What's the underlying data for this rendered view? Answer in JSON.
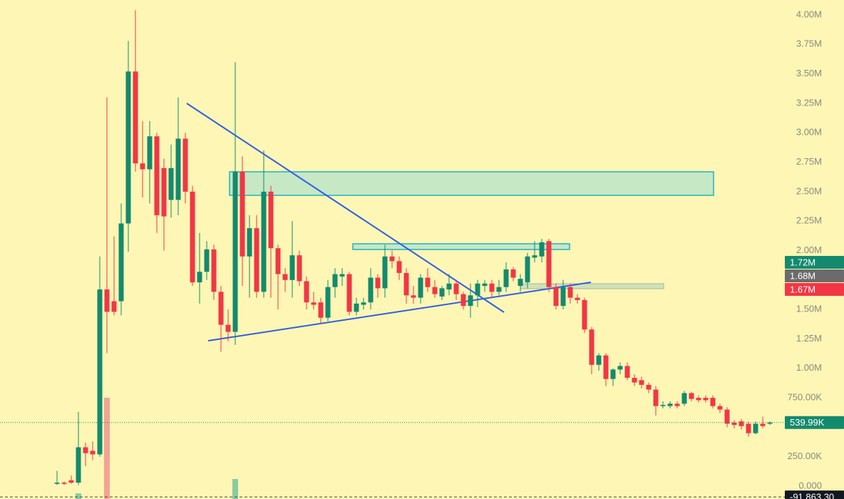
{
  "chart_data": {
    "type": "candlestick",
    "ylim": [
      -108900,
      4127000
    ],
    "yticks": [
      {
        "value": 4000000,
        "label": "4.00M"
      },
      {
        "value": 3750000,
        "label": "3.75M"
      },
      {
        "value": 3500000,
        "label": "3.50M"
      },
      {
        "value": 3250000,
        "label": "3.25M"
      },
      {
        "value": 3000000,
        "label": "3.00M"
      },
      {
        "value": 2750000,
        "label": "2.75M"
      },
      {
        "value": 2500000,
        "label": "2.50M"
      },
      {
        "value": 2250000,
        "label": "2.25M"
      },
      {
        "value": 2000000,
        "label": "2.00M"
      },
      {
        "value": 1750000,
        "label": "1.75M"
      },
      {
        "value": 1500000,
        "label": "1.50M"
      },
      {
        "value": 1250000,
        "label": "1.25M"
      },
      {
        "value": 1000000,
        "label": "1.00M"
      },
      {
        "value": 750000,
        "label": "750.00K"
      },
      {
        "value": 250000,
        "label": "250.00K"
      },
      {
        "value": 0,
        "label": "0.000"
      }
    ],
    "up_color": "#138a6e",
    "down_color": "#f23645",
    "up_volume_color": "#8ccaa0",
    "down_volume_color": "#f4a294",
    "open": [
      20000,
      30000,
      50000,
      30000,
      330000,
      300000,
      270000,
      1670000,
      1570000,
      1570000,
      2230000,
      3520000,
      2740000,
      2690000,
      2970000,
      2700000,
      2430000,
      2430000,
      2950000,
      2500000,
      1730000,
      1820000,
      2010000,
      1650000,
      1370000,
      1310000,
      2670000,
      1950000,
      2190000,
      1650000,
      2500000,
      2020000,
      1800000,
      1750000,
      1960000,
      1740000,
      1560000,
      1560000,
      1430000,
      1690000,
      1780000,
      1800000,
      1480000,
      1540000,
      1560000,
      1770000,
      1680000,
      1950000,
      1910000,
      1810000,
      1620000,
      1600000,
      1770000,
      1690000,
      1610000,
      1670000,
      1720000,
      1630000,
      1530000,
      1620000,
      1700000,
      1720000,
      1650000,
      1690000,
      1840000,
      1700000,
      1730000,
      1940000,
      1950000,
      2080000,
      1690000,
      1530000,
      1690000,
      1600000,
      1580000,
      1330000,
      1030000,
      1110000,
      910000,
      990000,
      1020000,
      920000,
      900000,
      860000,
      820000,
      680000,
      680000,
      700000,
      700000,
      790000,
      750000,
      750000,
      750000,
      680000,
      650000,
      540000,
      550000,
      530000,
      450000,
      530000,
      530000
    ],
    "high": [
      130000,
      40000,
      90000,
      630000,
      370000,
      380000,
      1950000,
      3300000,
      2120000,
      2400000,
      3780000,
      4040000,
      3100000,
      3100000,
      3000000,
      2780000,
      2900000,
      3300000,
      3000000,
      2550000,
      2150000,
      2080000,
      2050000,
      1700000,
      1500000,
      3600000,
      2800000,
      2300000,
      2300000,
      2850000,
      2550000,
      2050000,
      1850000,
      2250000,
      2000000,
      1780000,
      1650000,
      1600000,
      1750000,
      1850000,
      1850000,
      1820000,
      1600000,
      1600000,
      1850000,
      1800000,
      2050000,
      2000000,
      1950000,
      1850000,
      1700000,
      1800000,
      1850000,
      1750000,
      1700000,
      1800000,
      1750000,
      1650000,
      1720000,
      1750000,
      1750000,
      1750000,
      1750000,
      1900000,
      1860000,
      1800000,
      1980000,
      2080000,
      2100000,
      2100000,
      1720000,
      1750000,
      1720000,
      1630000,
      1600000,
      1350000,
      1130000,
      1130000,
      1000000,
      1050000,
      1050000,
      950000,
      930000,
      880000,
      850000,
      720000,
      720000,
      720000,
      810000,
      800000,
      770000,
      770000,
      770000,
      700000,
      670000,
      560000,
      570000,
      550000,
      550000,
      590000,
      550000
    ],
    "low": [
      10000,
      10000,
      20000,
      10000,
      170000,
      220000,
      250000,
      1130000,
      1450000,
      1450000,
      1990000,
      2670000,
      2450000,
      2400000,
      2150000,
      2000000,
      2280000,
      2300000,
      2400000,
      1700000,
      1550000,
      1750000,
      1580000,
      1140000,
      1230000,
      1200000,
      1700000,
      1600000,
      1600000,
      1600000,
      1600000,
      1500000,
      1650000,
      1600000,
      1700000,
      1500000,
      1500000,
      1380000,
      1400000,
      1600000,
      1700000,
      1450000,
      1450000,
      1500000,
      1500000,
      1600000,
      1600000,
      1850000,
      1750000,
      1550000,
      1550000,
      1550000,
      1650000,
      1600000,
      1580000,
      1620000,
      1580000,
      1500000,
      1430000,
      1520000,
      1650000,
      1600000,
      1620000,
      1650000,
      1740000,
      1650000,
      1680000,
      1900000,
      1900000,
      1650000,
      1500000,
      1500000,
      1550000,
      1550000,
      1300000,
      950000,
      980000,
      850000,
      850000,
      950000,
      900000,
      850000,
      830000,
      790000,
      600000,
      660000,
      660000,
      660000,
      680000,
      720000,
      710000,
      710000,
      660000,
      620000,
      500000,
      490000,
      480000,
      420000,
      440000,
      490000,
      520000
    ],
    "close": [
      30000,
      20000,
      30000,
      330000,
      280000,
      270000,
      1670000,
      1480000,
      1480000,
      2230000,
      3520000,
      2740000,
      2690000,
      2970000,
      2300000,
      2290000,
      2700000,
      2950000,
      2500000,
      1730000,
      1820000,
      2010000,
      1650000,
      1370000,
      1310000,
      2670000,
      1950000,
      2190000,
      1650000,
      2500000,
      2020000,
      1800000,
      1750000,
      1960000,
      1740000,
      1560000,
      1540000,
      1430000,
      1690000,
      1800000,
      1800000,
      1480000,
      1550000,
      1560000,
      1770000,
      1680000,
      1950000,
      1910000,
      1810000,
      1620000,
      1600000,
      1770000,
      1690000,
      1630000,
      1680000,
      1720000,
      1630000,
      1530000,
      1620000,
      1720000,
      1720000,
      1650000,
      1690000,
      1840000,
      1770000,
      1760000,
      1950000,
      1960000,
      2070000,
      1690000,
      1530000,
      1690000,
      1600000,
      1580000,
      1330000,
      1030000,
      1110000,
      910000,
      990000,
      1020000,
      920000,
      880000,
      860000,
      820000,
      680000,
      690000,
      700000,
      680000,
      790000,
      740000,
      730000,
      730000,
      680000,
      650000,
      530000,
      520000,
      510000,
      450000,
      530000,
      510000,
      539990
    ],
    "volume": [
      null,
      null,
      null,
      8,
      null,
      null,
      null,
      142,
      null,
      null,
      null,
      null,
      null,
      null,
      null,
      null,
      null,
      null,
      null,
      null,
      null,
      null,
      null,
      null,
      null,
      28,
      null,
      null,
      null,
      null,
      null,
      null,
      null,
      null,
      null,
      null,
      null,
      null,
      null,
      null,
      null,
      null,
      null,
      null,
      null,
      null,
      null,
      null,
      null,
      null,
      null,
      null,
      null,
      null,
      null,
      null,
      null,
      null,
      null,
      null,
      null,
      null,
      null,
      null,
      null,
      null,
      null,
      null,
      null,
      null,
      null,
      null,
      null,
      null,
      null,
      null,
      null,
      null,
      null,
      null,
      null,
      null,
      null,
      null,
      null,
      null,
      null,
      null,
      null,
      null,
      null,
      null,
      null,
      null,
      null,
      null,
      null,
      null,
      null,
      null,
      null
    ],
    "price_labels": [
      {
        "value": 1720000,
        "label": "1.72M",
        "color": "#138a6e"
      },
      {
        "value": 1680000,
        "label": "1.68M",
        "color": "#6b6b6b"
      },
      {
        "value": 1670000,
        "label": "1.67M",
        "color": "#f23645"
      },
      {
        "value": 539990,
        "label": "539.99K",
        "color": "#138a6e",
        "line": "dotted"
      },
      {
        "value": -91863.3,
        "label": "-91,863.30",
        "color": "#131722",
        "line": "dashed"
      }
    ]
  }
}
